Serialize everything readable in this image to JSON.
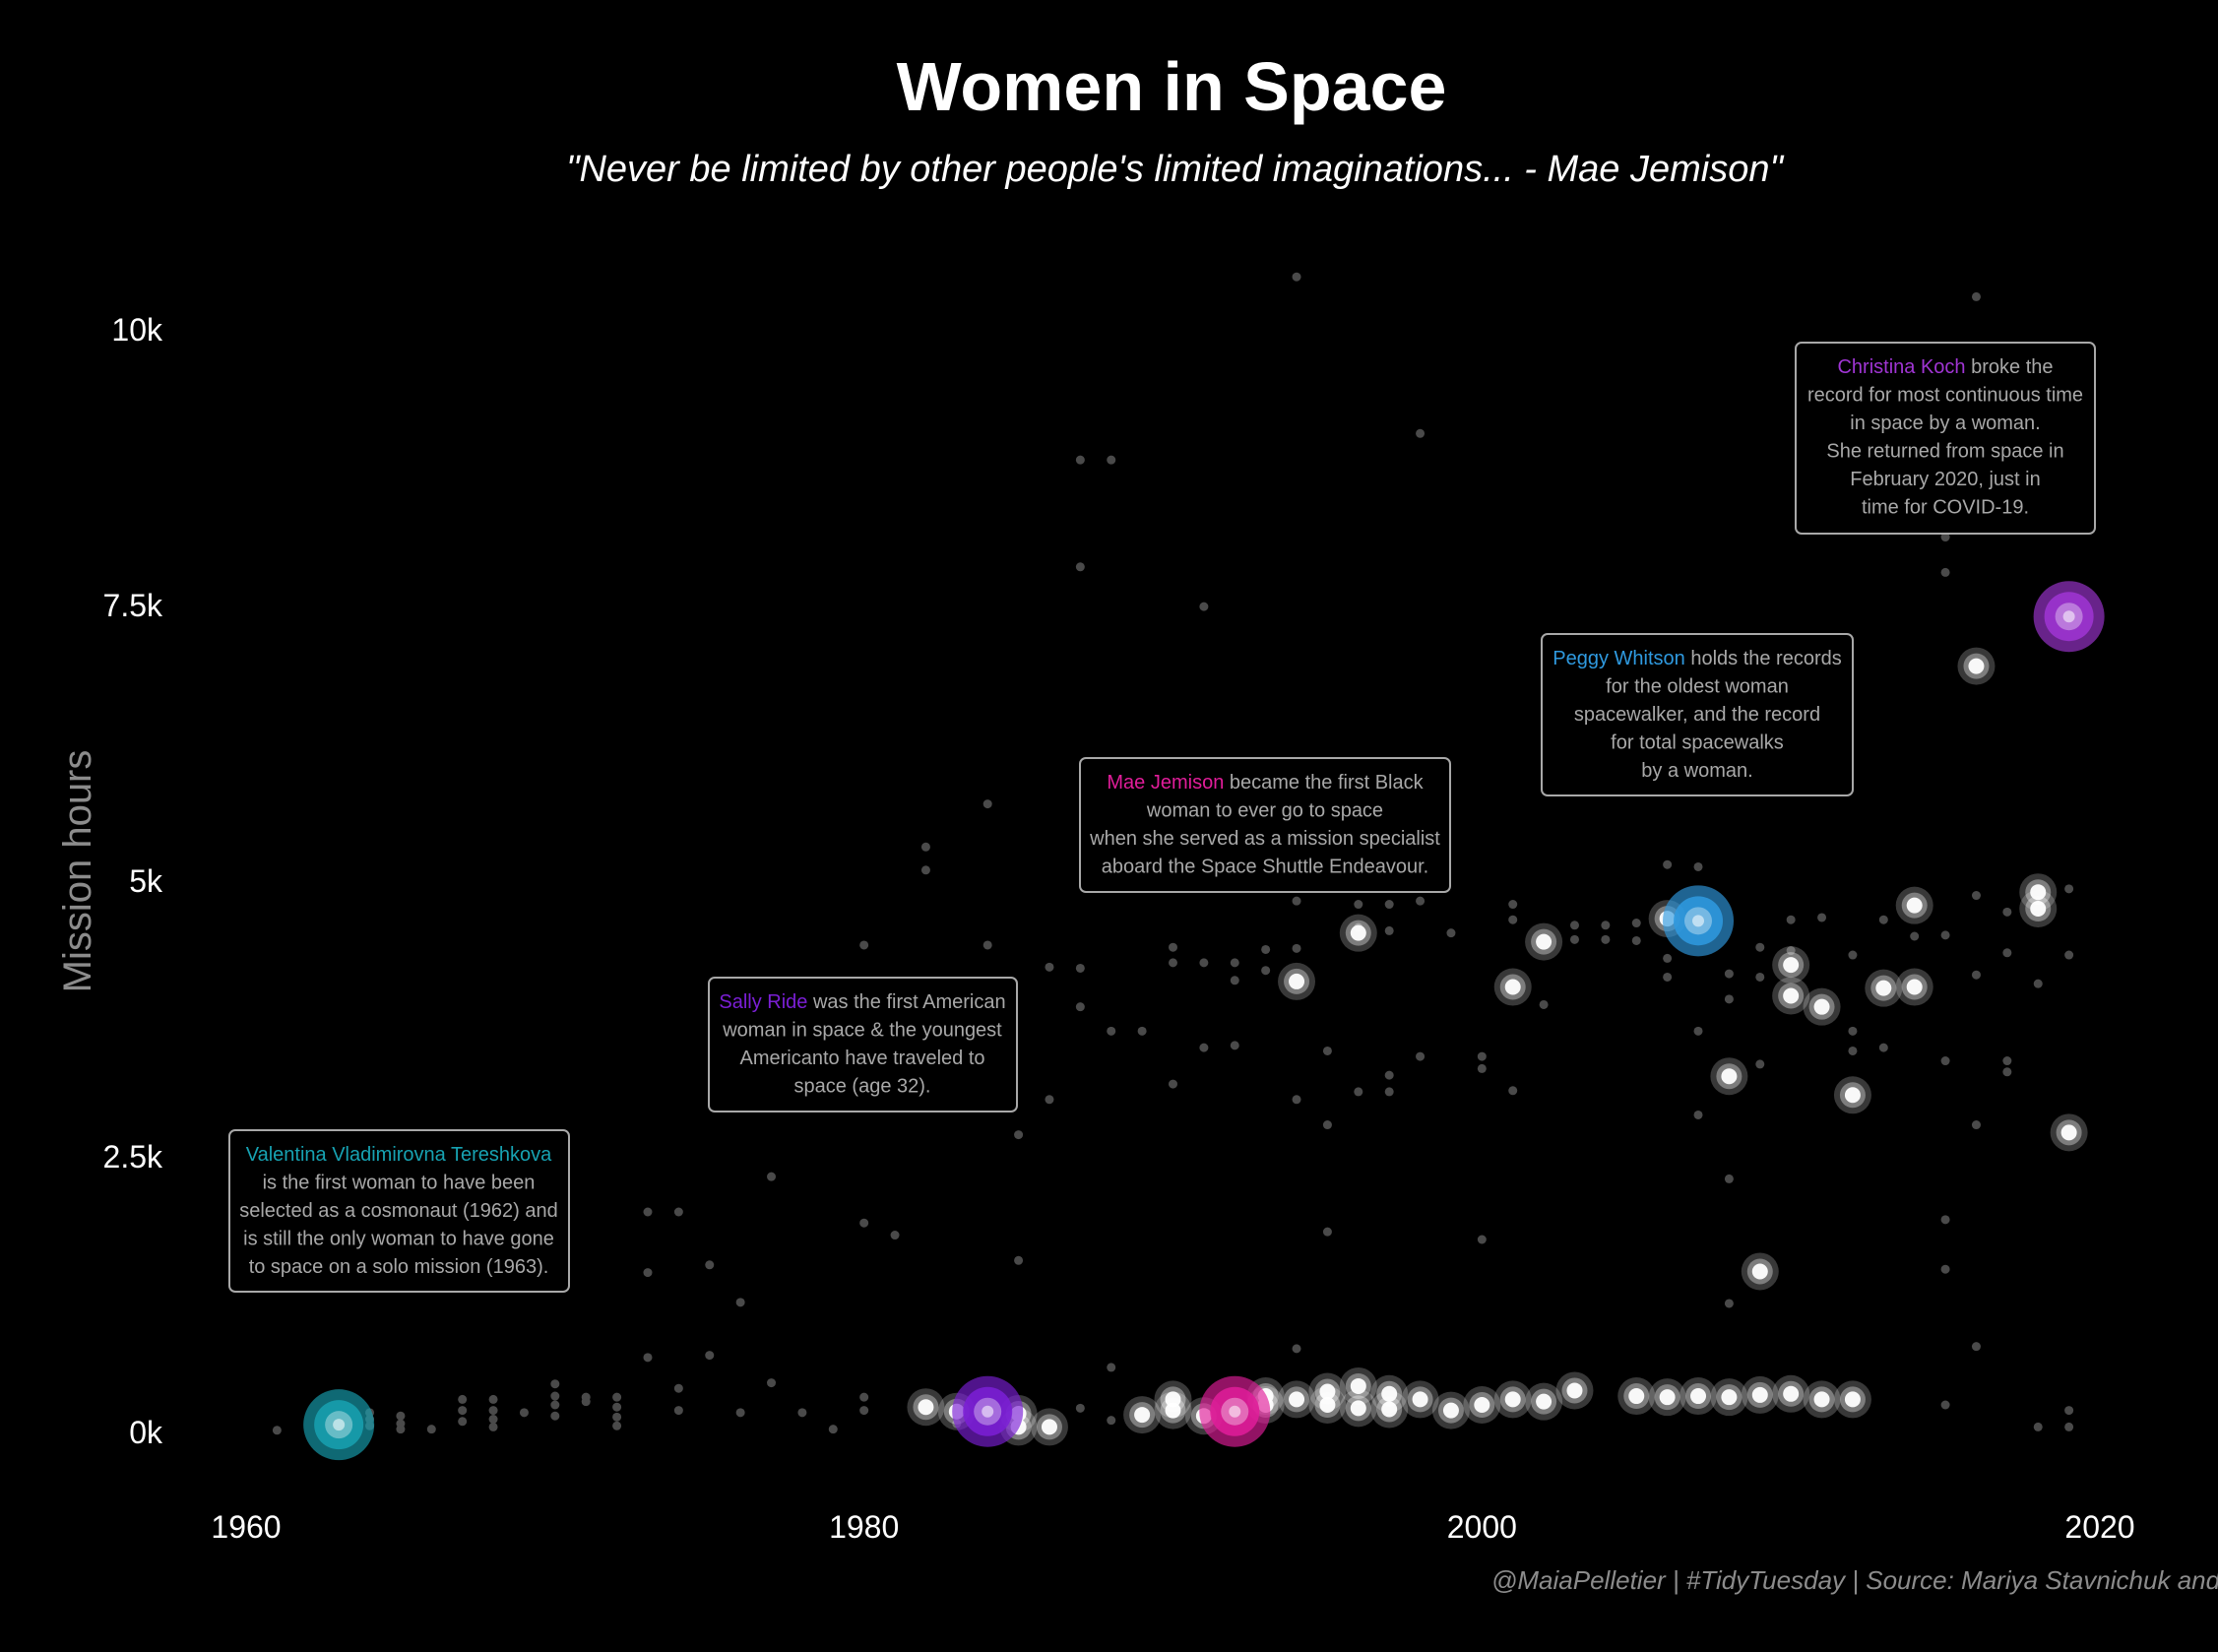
{
  "title": "Women in Space",
  "subtitle": "\"Never be limited by other people's limited imaginations... - Mae Jemison\"",
  "caption": "@MaiaPelletier | #TidyTuesday | Source: Mariya Stavnichuk and T",
  "colors": {
    "background": "#000000",
    "point": "#ffffff",
    "tereshkova": "#17a2b2",
    "ride": "#7b1fd6",
    "jemison": "#e11d9a",
    "whitson": "#2f9ae0",
    "koch": "#a035d4"
  },
  "chart_data": {
    "type": "scatter",
    "title": "Women in Space",
    "subtitle": "\"Never be limited by other people's limited imaginations... - Mae Jemison\"",
    "xlabel": "",
    "ylabel": "Mission hours",
    "xlim": [
      1958,
      2021
    ],
    "ylim": [
      -600,
      10800
    ],
    "x_ticks": [
      1960,
      1980,
      2000,
      2020
    ],
    "x_tick_labels": [
      "1960",
      "1980",
      "2000",
      "2020"
    ],
    "y_ticks": [
      0,
      2500,
      5000,
      7500,
      10000
    ],
    "y_tick_labels": [
      "0k",
      "2.5k",
      "5k",
      "7.5k",
      "10k"
    ],
    "grid": false,
    "legend": "none",
    "background_points": [
      [
        1961,
        20
      ],
      [
        1963,
        80
      ],
      [
        1964,
        180
      ],
      [
        1964,
        120
      ],
      [
        1964,
        60
      ],
      [
        1965,
        150
      ],
      [
        1965,
        80
      ],
      [
        1965,
        30
      ],
      [
        1966,
        30
      ],
      [
        1967,
        300
      ],
      [
        1967,
        200
      ],
      [
        1967,
        100
      ],
      [
        1968,
        300
      ],
      [
        1968,
        200
      ],
      [
        1968,
        120
      ],
      [
        1968,
        50
      ],
      [
        1969,
        180
      ],
      [
        1970,
        440
      ],
      [
        1970,
        330
      ],
      [
        1970,
        250
      ],
      [
        1970,
        150
      ],
      [
        1971,
        320
      ],
      [
        1971,
        280
      ],
      [
        1972,
        320
      ],
      [
        1972,
        230
      ],
      [
        1972,
        140
      ],
      [
        1972,
        60
      ],
      [
        1973,
        2000
      ],
      [
        1973,
        1450
      ],
      [
        1973,
        680
      ],
      [
        1974,
        2000
      ],
      [
        1974,
        400
      ],
      [
        1974,
        200
      ],
      [
        1975,
        1520
      ],
      [
        1975,
        700
      ],
      [
        1976,
        1180
      ],
      [
        1976,
        180
      ],
      [
        1977,
        2320
      ],
      [
        1977,
        450
      ],
      [
        1978,
        180
      ],
      [
        1979,
        30
      ],
      [
        1980,
        4420
      ],
      [
        1980,
        1900
      ],
      [
        1980,
        320
      ],
      [
        1980,
        200
      ],
      [
        1981,
        1790
      ],
      [
        1982,
        5310
      ],
      [
        1982,
        5100
      ],
      [
        1983,
        80
      ],
      [
        1984,
        5700
      ],
      [
        1984,
        4420
      ],
      [
        1985,
        2700
      ],
      [
        1985,
        1560
      ],
      [
        1986,
        4220
      ],
      [
        1986,
        3020
      ],
      [
        1987,
        8820
      ],
      [
        1987,
        7850
      ],
      [
        1987,
        4210
      ],
      [
        1987,
        3860
      ],
      [
        1987,
        220
      ],
      [
        1988,
        8820
      ],
      [
        1988,
        3640
      ],
      [
        1988,
        590
      ],
      [
        1988,
        110
      ],
      [
        1989,
        3640
      ],
      [
        1990,
        4400
      ],
      [
        1990,
        4260
      ],
      [
        1990,
        3160
      ],
      [
        1991,
        7490
      ],
      [
        1991,
        4260
      ],
      [
        1991,
        3490
      ],
      [
        1992,
        4100
      ],
      [
        1992,
        4260
      ],
      [
        1992,
        3510
      ],
      [
        1993,
        4380
      ],
      [
        1993,
        4190
      ],
      [
        1994,
        10480
      ],
      [
        1994,
        4820
      ],
      [
        1994,
        4390
      ],
      [
        1994,
        3020
      ],
      [
        1994,
        760
      ],
      [
        1995,
        3460
      ],
      [
        1995,
        2790
      ],
      [
        1995,
        1820
      ],
      [
        1996,
        4790
      ],
      [
        1996,
        4580
      ],
      [
        1996,
        3090
      ],
      [
        1997,
        4790
      ],
      [
        1997,
        4550
      ],
      [
        1997,
        3240
      ],
      [
        1997,
        3090
      ],
      [
        1998,
        9060
      ],
      [
        1998,
        4960
      ],
      [
        1998,
        4820
      ],
      [
        1998,
        3410
      ],
      [
        1999,
        4530
      ],
      [
        2000,
        3410
      ],
      [
        2000,
        3300
      ],
      [
        2000,
        1750
      ],
      [
        2001,
        4790
      ],
      [
        2001,
        4650
      ],
      [
        2001,
        3100
      ],
      [
        2002,
        3880
      ],
      [
        2003,
        4600
      ],
      [
        2003,
        4470
      ],
      [
        2004,
        4600
      ],
      [
        2004,
        4470
      ],
      [
        2005,
        4620
      ],
      [
        2005,
        4460
      ],
      [
        2006,
        5150
      ],
      [
        2006,
        4300
      ],
      [
        2006,
        4130
      ],
      [
        2007,
        5130
      ],
      [
        2007,
        3640
      ],
      [
        2007,
        2880
      ],
      [
        2008,
        4160
      ],
      [
        2008,
        3930
      ],
      [
        2008,
        2300
      ],
      [
        2008,
        1170
      ],
      [
        2009,
        4400
      ],
      [
        2009,
        4130
      ],
      [
        2009,
        3340
      ],
      [
        2010,
        4650
      ],
      [
        2010,
        4370
      ],
      [
        2011,
        4670
      ],
      [
        2012,
        3640
      ],
      [
        2012,
        3460
      ],
      [
        2012,
        4330
      ],
      [
        2013,
        4650
      ],
      [
        2013,
        3490
      ],
      [
        2014,
        4500
      ],
      [
        2015,
        8120
      ],
      [
        2015,
        7800
      ],
      [
        2015,
        3370
      ],
      [
        2015,
        4510
      ],
      [
        2015,
        1930
      ],
      [
        2015,
        1480
      ],
      [
        2015,
        250
      ],
      [
        2016,
        4870
      ],
      [
        2016,
        4150
      ],
      [
        2016,
        2790
      ],
      [
        2016,
        780
      ],
      [
        2016,
        10300
      ],
      [
        2017,
        4720
      ],
      [
        2017,
        4350
      ],
      [
        2017,
        3370
      ],
      [
        2017,
        3270
      ],
      [
        2018,
        4070
      ],
      [
        2018,
        50
      ],
      [
        2019,
        4930
      ],
      [
        2019,
        4330
      ],
      [
        2019,
        200
      ],
      [
        2019,
        50
      ]
    ],
    "highlighted_points": [
      [
        1982,
        230
      ],
      [
        1983,
        190
      ],
      [
        1985,
        170
      ],
      [
        1985,
        50
      ],
      [
        1986,
        50
      ],
      [
        1989,
        160
      ],
      [
        1990,
        300
      ],
      [
        1990,
        200
      ],
      [
        1991,
        150
      ],
      [
        1993,
        250
      ],
      [
        1993,
        330
      ],
      [
        1994,
        300
      ],
      [
        1994,
        4090
      ],
      [
        1995,
        370
      ],
      [
        1995,
        250
      ],
      [
        1996,
        420
      ],
      [
        1996,
        4530
      ],
      [
        1996,
        220
      ],
      [
        1997,
        350
      ],
      [
        1997,
        210
      ],
      [
        1998,
        300
      ],
      [
        1999,
        200
      ],
      [
        2000,
        250
      ],
      [
        2001,
        300
      ],
      [
        2001,
        4040
      ],
      [
        2002,
        280
      ],
      [
        2002,
        4450
      ],
      [
        2003,
        380
      ],
      [
        2005,
        330
      ],
      [
        2006,
        320
      ],
      [
        2006,
        4660
      ],
      [
        2007,
        330
      ],
      [
        2008,
        320
      ],
      [
        2008,
        3230
      ],
      [
        2009,
        340
      ],
      [
        2009,
        1460
      ],
      [
        2010,
        350
      ],
      [
        2010,
        3960
      ],
      [
        2010,
        4240
      ],
      [
        2011,
        300
      ],
      [
        2011,
        3860
      ],
      [
        2012,
        300
      ],
      [
        2012,
        3060
      ],
      [
        2013,
        4030
      ],
      [
        2014,
        4040
      ],
      [
        2014,
        4780
      ],
      [
        2016,
        6950
      ],
      [
        2018,
        4900
      ],
      [
        2018,
        4750
      ],
      [
        2019,
        2720
      ]
    ],
    "featured": [
      {
        "key": "tereshkova",
        "name": "Valentina Vladimirovna Tereshkova",
        "x": 1963,
        "y": 70
      },
      {
        "key": "ride",
        "name": "Sally Ride",
        "x": 1984,
        "y": 190
      },
      {
        "key": "jemison",
        "name": "Mae Jemison",
        "x": 1992,
        "y": 190
      },
      {
        "key": "whitson",
        "name": "Peggy Whitson",
        "x": 2007,
        "y": 4640
      },
      {
        "key": "koch",
        "name": "Christina Koch",
        "x": 2019,
        "y": 7400
      }
    ],
    "annotations": [
      {
        "key": "tereshkova",
        "name": "Valentina Vladimirovna Tereshkova",
        "lines": [
          "is the first woman to have been",
          "selected as a cosmonaut (1962) and",
          "is still the only woman to have gone",
          "to space on a solo mission (1963)."
        ]
      },
      {
        "key": "ride",
        "name": "Sally Ride",
        "first_rest": " was the first American",
        "lines": [
          "woman in space & the youngest",
          "Americanto have traveled to",
          "space (age 32)."
        ]
      },
      {
        "key": "jemison",
        "name": "Mae Jemison",
        "first_rest": " became the first Black",
        "lines": [
          "woman to ever go to space",
          "when she served as a mission specialist",
          "aboard the Space Shuttle Endeavour."
        ]
      },
      {
        "key": "whitson",
        "name": "Peggy Whitson",
        "first_rest": " holds the records",
        "lines": [
          "for the oldest woman",
          "spacewalker, and the record",
          "for total spacewalks",
          "by a woman."
        ]
      },
      {
        "key": "koch",
        "name": "Christina Koch",
        "first_rest": " broke the",
        "lines": [
          "record for most continuous time",
          "in space by a woman.",
          "She returned from space in",
          "February 2020, just in",
          "time for COVID-19."
        ]
      }
    ]
  }
}
